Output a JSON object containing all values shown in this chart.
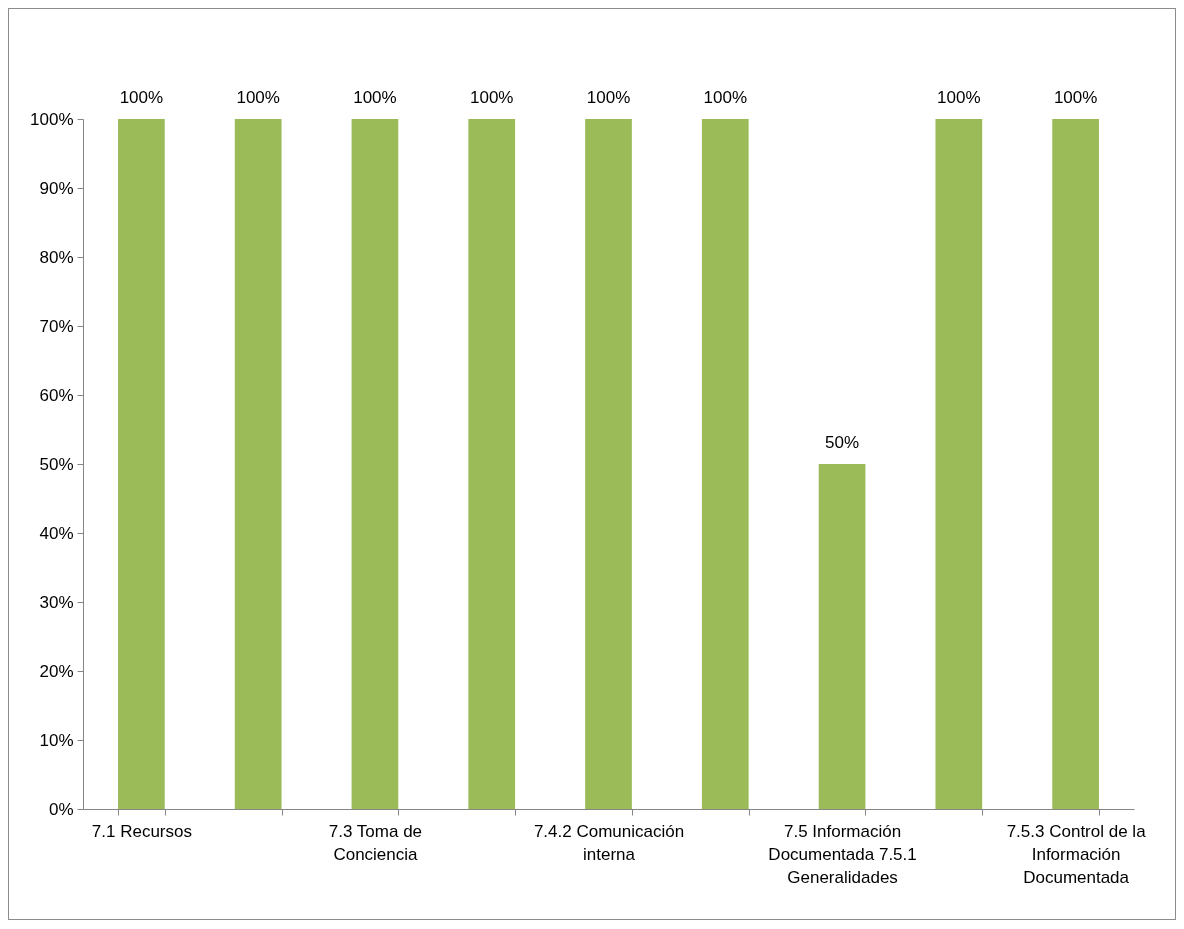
{
  "chart_data": {
    "type": "bar",
    "categories": [
      "7.1 Recursos",
      null,
      "7.3 Toma de Conciencia",
      null,
      "7.4.2 Comunicación interna",
      null,
      "7.5 Información Documentada 7.5.1 Generalidades",
      null,
      "7.5.3 Control de la Información Documentada"
    ],
    "values": [
      100,
      100,
      100,
      100,
      100,
      100,
      50,
      100,
      100
    ],
    "value_labels": [
      "100%",
      "100%",
      "100%",
      "100%",
      "100%",
      "100%",
      "50%",
      "100%",
      "100%"
    ],
    "color": "#9bbb59",
    "ylim": [
      0,
      100
    ],
    "yticks": [
      {
        "value": 0,
        "label": "0%"
      },
      {
        "value": 10,
        "label": "10%"
      },
      {
        "value": 20,
        "label": "20%"
      },
      {
        "value": 30,
        "label": "30%"
      },
      {
        "value": 40,
        "label": "40%"
      },
      {
        "value": 50,
        "label": "50%"
      },
      {
        "value": 60,
        "label": "60%"
      },
      {
        "value": 70,
        "label": "70%"
      },
      {
        "value": 80,
        "label": "80%"
      },
      {
        "value": 90,
        "label": "90%"
      },
      {
        "value": 100,
        "label": "100%"
      }
    ],
    "grid": false
  }
}
